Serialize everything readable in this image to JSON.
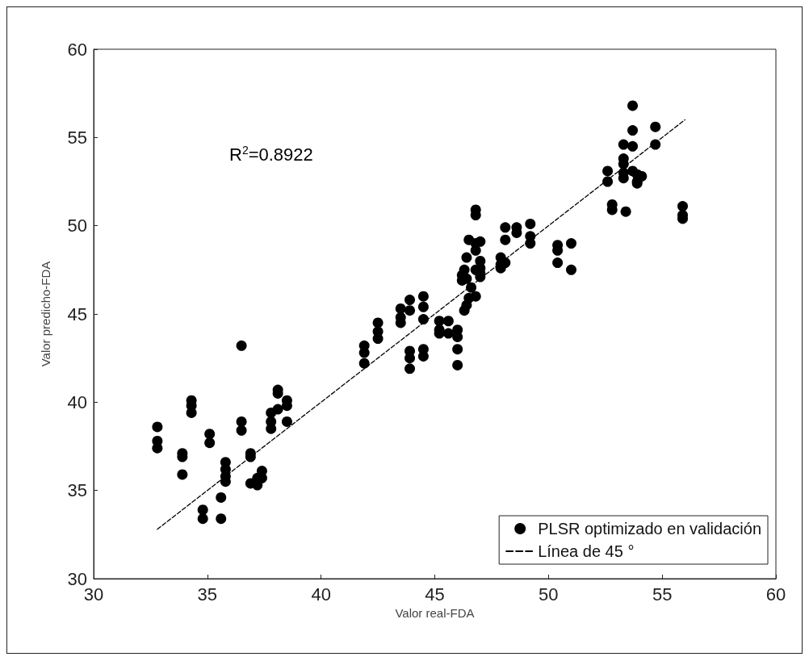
{
  "chart_data": {
    "type": "scatter",
    "xlabel": "Valor real-FDA",
    "ylabel": "Valor predicho-FDA",
    "annotations": [
      "R$^{2}$=0.8922"
    ],
    "xlim": [
      30,
      60
    ],
    "ylim": [
      30,
      60
    ],
    "xticks": [
      30,
      35,
      40,
      45,
      50,
      55,
      60
    ],
    "yticks": [
      30,
      35,
      40,
      45,
      50,
      55,
      60
    ],
    "grid": false,
    "legend": "bottom right",
    "series": [
      {
        "name": "PLSR optimizado en validación",
        "color": "#000000",
        "marker": "circle",
        "x": [
          32.8,
          32.8,
          32.8,
          33.9,
          33.9,
          33.9,
          34.3,
          34.3,
          34.3,
          34.8,
          34.8,
          35.1,
          35.1,
          35.6,
          35.6,
          35.8,
          35.8,
          35.8,
          35.8,
          36.5,
          36.5,
          36.5,
          36.9,
          36.9,
          36.9,
          37.2,
          37.2,
          37.4,
          37.4,
          37.8,
          37.8,
          37.8,
          38.1,
          38.1,
          38.1,
          38.5,
          38.5,
          38.5,
          41.9,
          41.9,
          41.9,
          42.5,
          42.5,
          42.5,
          43.5,
          43.5,
          43.5,
          43.9,
          43.9,
          43.9,
          43.9,
          43.9,
          44.5,
          44.5,
          44.5,
          44.5,
          44.5,
          45.2,
          45.2,
          45.2,
          45.6,
          45.6,
          46.0,
          46.0,
          46.0,
          46.0,
          46.2,
          46.2,
          46.3,
          46.3,
          46.4,
          46.4,
          46.4,
          46.5,
          46.5,
          46.6,
          46.8,
          46.8,
          46.8,
          46.8,
          46.8,
          46.8,
          47.0,
          47.0,
          47.0,
          47.0,
          47.0,
          47.9,
          47.9,
          47.9,
          48.1,
          48.1,
          48.1,
          48.6,
          48.6,
          49.2,
          49.2,
          49.2,
          50.4,
          50.4,
          50.4,
          51.0,
          51.0,
          52.6,
          52.6,
          52.8,
          52.8,
          53.3,
          53.3,
          53.3,
          53.3,
          53.3,
          53.4,
          53.7,
          53.7,
          53.7,
          53.7,
          53.9,
          53.9,
          53.9,
          54.1,
          54.7,
          54.7,
          55.9,
          55.9,
          55.9
        ],
        "values": [
          38.6,
          37.8,
          37.4,
          37.1,
          36.9,
          35.9,
          40.1,
          39.8,
          39.4,
          33.9,
          33.4,
          38.2,
          37.7,
          34.6,
          33.4,
          36.6,
          36.2,
          35.8,
          35.5,
          43.2,
          38.9,
          38.4,
          37.1,
          36.9,
          35.4,
          35.3,
          35.7,
          36.1,
          35.7,
          39.4,
          38.9,
          38.5,
          40.7,
          40.5,
          39.6,
          40.1,
          39.8,
          38.9,
          43.2,
          42.8,
          42.2,
          44.5,
          44.0,
          43.6,
          45.3,
          44.8,
          44.5,
          45.8,
          45.2,
          42.9,
          42.5,
          41.9,
          46.0,
          45.4,
          44.7,
          43.0,
          42.6,
          44.6,
          44.1,
          43.9,
          44.6,
          43.9,
          44.1,
          43.7,
          43.0,
          42.1,
          47.2,
          46.9,
          47.5,
          45.2,
          48.2,
          45.5,
          47.0,
          49.2,
          45.9,
          46.5,
          50.9,
          50.6,
          49.0,
          48.6,
          47.5,
          46.0,
          49.1,
          48.0,
          47.6,
          47.3,
          47.1,
          48.2,
          47.8,
          47.6,
          49.9,
          49.2,
          47.9,
          49.9,
          49.6,
          50.1,
          49.4,
          49.0,
          48.9,
          48.6,
          47.9,
          49.0,
          47.5,
          53.1,
          52.5,
          51.2,
          50.9,
          54.6,
          53.8,
          53.5,
          53.0,
          52.7,
          50.8,
          56.8,
          55.4,
          54.5,
          53.1,
          52.9,
          52.5,
          52.4,
          52.8,
          55.6,
          54.6,
          51.1,
          50.6,
          50.4
        ]
      },
      {
        "name": "Línea de 45 °",
        "type": "line",
        "color": "#000000",
        "line_style": "dashed",
        "marker": "none",
        "x": [
          32.8,
          56.0
        ],
        "values": [
          32.8,
          56.0
        ]
      }
    ]
  }
}
